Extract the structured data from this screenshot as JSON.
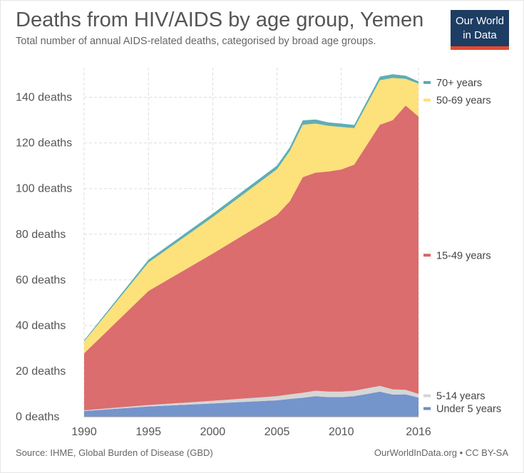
{
  "title": "Deaths from HIV/AIDS by age group, Yemen",
  "subtitle": "Total number of annual AIDS-related deaths, categorised by broad age groups.",
  "logo": {
    "line1": "Our World",
    "line2": "in Data"
  },
  "footer": {
    "source": "Source: IHME, Global Burden of Disease (GBD)",
    "license": "OurWorldInData.org • CC BY-SA"
  },
  "chart_data": {
    "type": "area",
    "stacked": true,
    "x": [
      1990,
      1995,
      2000,
      2005,
      2006,
      2007,
      2008,
      2009,
      2010,
      2011,
      2013,
      2014,
      2015,
      2016
    ],
    "x_ticks": [
      "1990",
      "1995",
      "2000",
      "2005",
      "2010",
      "2016"
    ],
    "y_ticks": [
      "0 deaths",
      "20 deaths",
      "40 deaths",
      "60 deaths",
      "80 deaths",
      "100 deaths",
      "120 deaths",
      "140 deaths"
    ],
    "ylim": [
      0,
      153
    ],
    "xlim": [
      1990,
      2016
    ],
    "grid": true,
    "legend_position": "right",
    "series": [
      {
        "name": "Under 5 years",
        "color": "#6d8ec9",
        "values": [
          2.5,
          4.5,
          5.8,
          7.2,
          7.8,
          8.3,
          9.0,
          8.6,
          8.6,
          9.0,
          11.0,
          9.7,
          9.8,
          8.4
        ]
      },
      {
        "name": "5-14 years",
        "color": "#d4d4d4",
        "values": [
          0.3,
          0.6,
          1.2,
          1.8,
          2.0,
          2.2,
          2.4,
          2.4,
          2.4,
          2.4,
          2.5,
          2.3,
          2.0,
          1.6
        ]
      },
      {
        "name": "15-49 years",
        "color": "#d96566",
        "values": [
          25.0,
          50.0,
          64.5,
          79.5,
          84.7,
          94.5,
          95.6,
          96.5,
          97.4,
          99.1,
          114.5,
          118.0,
          124.6,
          121.6
        ]
      },
      {
        "name": "50-69 years",
        "color": "#fddf74",
        "values": [
          5.2,
          12.5,
          16.0,
          20.0,
          22.0,
          23.0,
          21.5,
          20.0,
          18.6,
          16.0,
          19.5,
          18.5,
          11.7,
          14.4
        ]
      },
      {
        "name": "70+ years",
        "color": "#55aab0",
        "values": [
          0.5,
          1.2,
          1.5,
          1.6,
          1.7,
          1.9,
          1.8,
          1.5,
          1.5,
          1.4,
          1.6,
          1.6,
          1.4,
          1.0
        ]
      }
    ]
  }
}
